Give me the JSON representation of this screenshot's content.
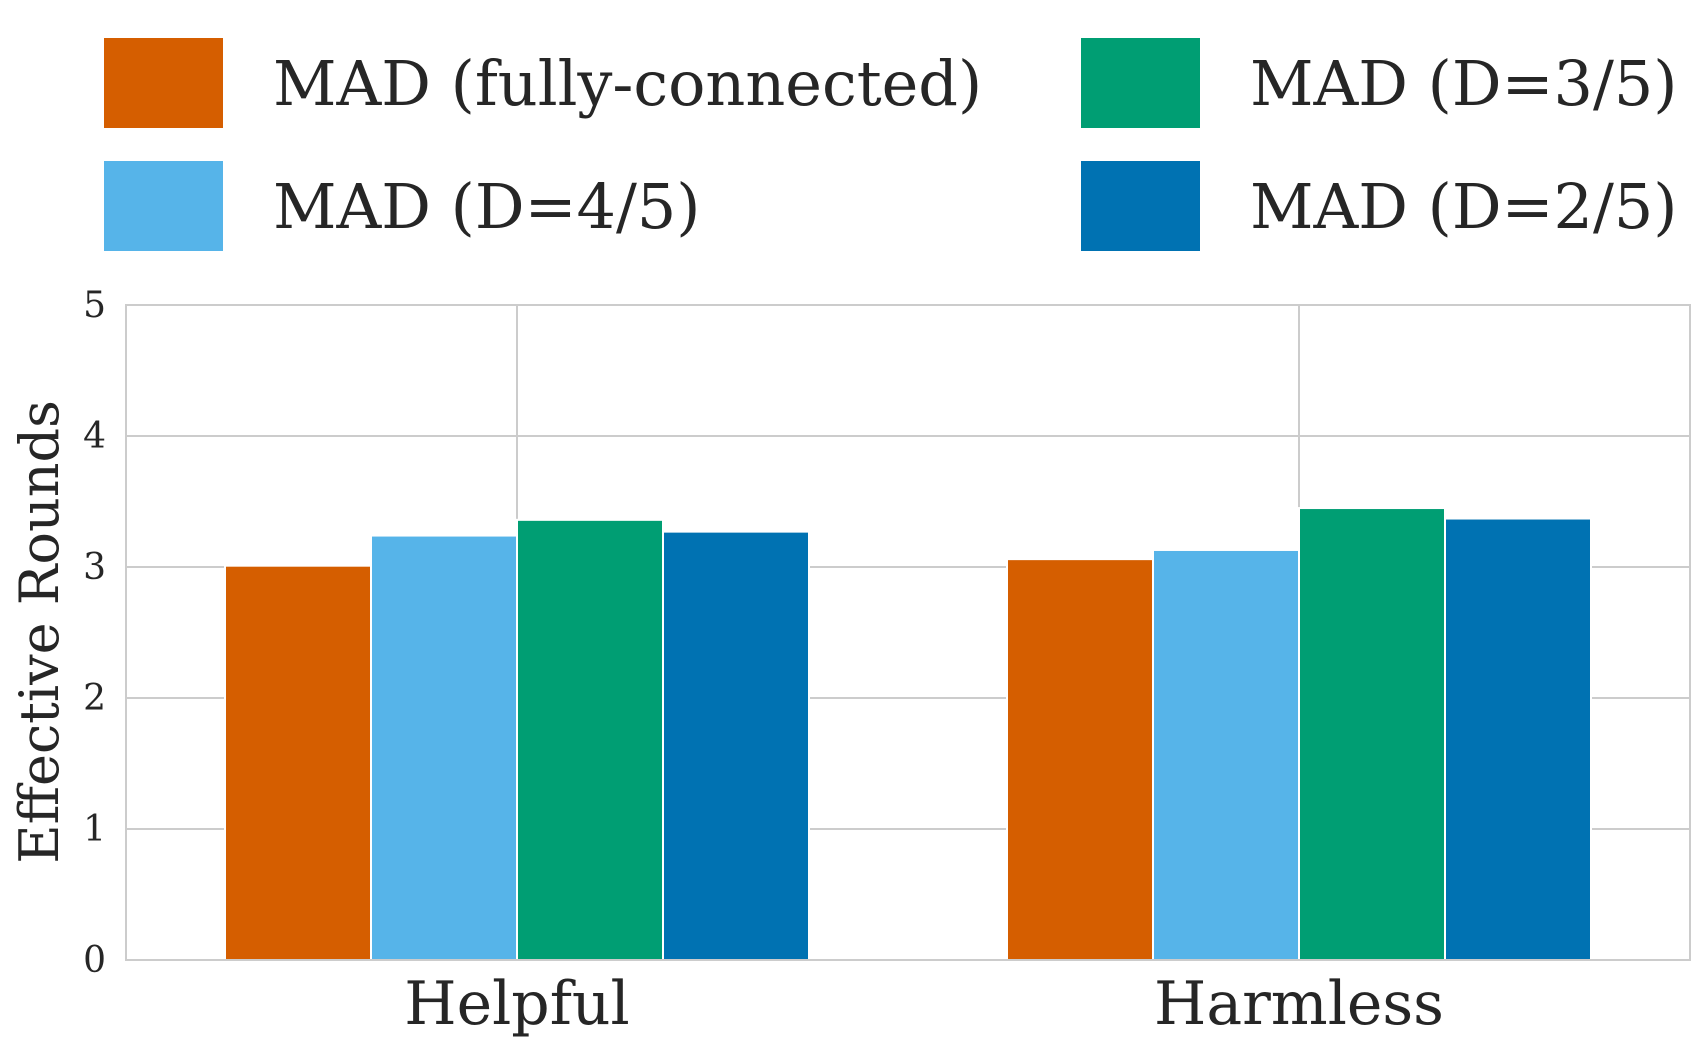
{
  "chart_data": {
    "type": "bar",
    "title": "",
    "xlabel": "",
    "ylabel": "Effective Rounds",
    "categories": [
      "Helpful",
      "Harmless"
    ],
    "ylim": [
      0,
      5
    ],
    "yticks": [
      0,
      1,
      2,
      3,
      4,
      5
    ],
    "grid": true,
    "legend_position": "top",
    "series": [
      {
        "name": "MAD (fully-connected)",
        "color": "#D55E00",
        "values": [
          3.01,
          3.06
        ]
      },
      {
        "name": "MAD (D=4/5)",
        "color": "#56B4E9",
        "values": [
          3.24,
          3.13
        ]
      },
      {
        "name": "MAD (D=3/5)",
        "color": "#009E73",
        "values": [
          3.36,
          3.45
        ]
      },
      {
        "name": "MAD (D=2/5)",
        "color": "#0072B2",
        "values": [
          3.27,
          3.37
        ]
      }
    ]
  }
}
